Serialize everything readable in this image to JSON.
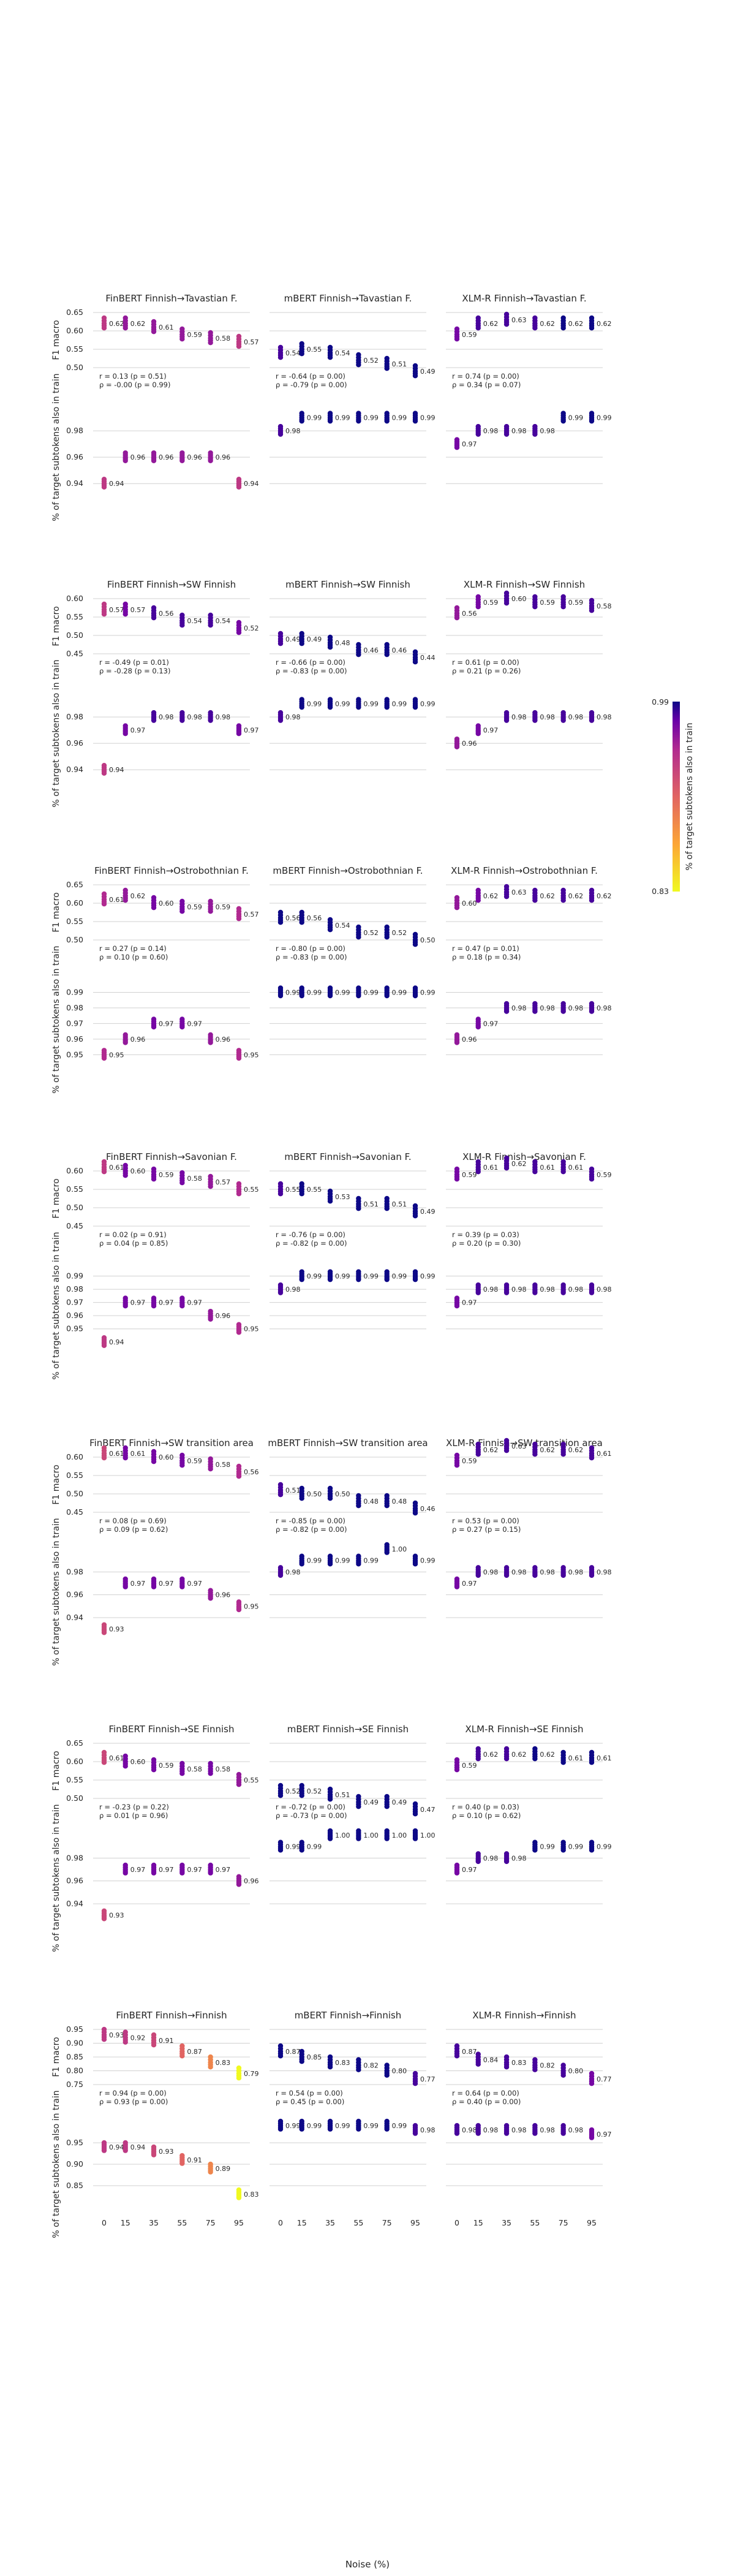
{
  "xlabel": "Noise (%)",
  "x_ticks": [
    "0",
    "15",
    "35",
    "55",
    "75",
    "95"
  ],
  "row_ylabels": [
    "F1 macro",
    "% of target subtokens also in train"
  ],
  "colorbar": {
    "label": "% of target subtokens also in train",
    "max_label": "0.99",
    "min_label": "0.83",
    "min": 0.83,
    "max": 0.99
  },
  "chart_data": {
    "type": "scatter",
    "x": [
      0,
      15,
      35,
      55,
      75,
      95
    ],
    "f1_yranges": [
      [
        0.5,
        0.65
      ],
      [
        0.45,
        0.6
      ],
      [
        0.5,
        0.65
      ],
      [
        0.45,
        0.6
      ],
      [
        0.45,
        0.6
      ],
      [
        0.5,
        0.65
      ],
      [
        0.75,
        0.95
      ]
    ],
    "f1_ticks": [
      [
        "0.65",
        "0.60",
        "0.55",
        "0.50"
      ],
      [
        "0.60",
        "0.55",
        "0.50",
        "0.45"
      ],
      [
        "0.65",
        "0.60",
        "0.55",
        "0.50"
      ],
      [
        "0.60",
        "0.55",
        "0.50",
        "0.45"
      ],
      [
        "0.60",
        "0.55",
        "0.50",
        "0.45"
      ],
      [
        "0.65",
        "0.60",
        "0.55",
        "0.50"
      ],
      [
        "0.95",
        "0.90",
        "0.85",
        "0.80",
        "0.75"
      ]
    ],
    "ov_yranges": [
      [
        0.935,
        1.0
      ],
      [
        0.935,
        1.0
      ],
      [
        0.945,
        1.0
      ],
      [
        0.935,
        1.0
      ],
      [
        0.925,
        1.0
      ],
      [
        0.925,
        1.0
      ],
      [
        0.8,
        1.0
      ]
    ],
    "ov_ticks": [
      [
        "0.98",
        "0.96",
        "0.94"
      ],
      [
        "0.98",
        "0.96",
        "0.94"
      ],
      [
        "0.99",
        "0.98",
        "0.97",
        "0.96",
        "0.95"
      ],
      [
        "0.99",
        "0.98",
        "0.97",
        "0.96",
        "0.95"
      ],
      [
        "0.98",
        "0.96",
        "0.94"
      ],
      [
        "0.98",
        "0.96",
        "0.94"
      ],
      [
        "0.95",
        "0.90",
        "0.85"
      ]
    ],
    "panels": [
      [
        {
          "title": "FinBERT Finnish→Tavastian F.",
          "f1": [
            0.62,
            0.62,
            0.61,
            0.59,
            0.58,
            0.57
          ],
          "f1_labels": [
            "0.62",
            "0.62",
            "0.61",
            "0.59",
            "0.58",
            "0.57"
          ],
          "ov": [
            0.94,
            0.96,
            0.96,
            0.96,
            0.96,
            0.94
          ],
          "ov_labels": [
            "0.94",
            "0.96",
            "0.96",
            "0.96",
            "0.96",
            "0.94"
          ],
          "corr": [
            "r = 0.13 (p = 0.51)",
            "ρ = -0.00 (p = 0.99)"
          ]
        },
        {
          "title": "mBERT Finnish→Tavastian F.",
          "f1": [
            0.54,
            0.55,
            0.54,
            0.52,
            0.51,
            0.49
          ],
          "f1_labels": [
            "0.54",
            "0.55",
            "0.54",
            "0.52",
            "0.51",
            "0.49"
          ],
          "ov": [
            0.98,
            0.99,
            0.99,
            0.99,
            0.99,
            0.99
          ],
          "ov_labels": [
            "0.98",
            "0.99",
            "0.99",
            "0.99",
            "0.99",
            "0.99"
          ],
          "corr": [
            "r = -0.64 (p = 0.00)",
            "ρ = -0.79 (p = 0.00)"
          ]
        },
        {
          "title": "XLM-R Finnish→Tavastian F.",
          "f1": [
            0.59,
            0.62,
            0.63,
            0.62,
            0.62,
            0.62
          ],
          "f1_labels": [
            "0.59",
            "0.62",
            "0.63",
            "0.62",
            "0.62",
            "0.62"
          ],
          "ov": [
            0.97,
            0.98,
            0.98,
            0.98,
            0.99,
            0.99
          ],
          "ov_labels": [
            "0.97",
            "0.98",
            "0.98",
            "0.98",
            "0.99",
            "0.99"
          ],
          "corr": [
            "r = 0.74 (p = 0.00)",
            "ρ = 0.34 (p = 0.07)"
          ]
        }
      ],
      [
        {
          "title": "FinBERT Finnish→SW Finnish",
          "f1": [
            0.57,
            0.57,
            0.56,
            0.54,
            0.54,
            0.52
          ],
          "f1_labels": [
            "0.57",
            "0.57",
            "0.56",
            "0.54",
            "0.54",
            "0.52"
          ],
          "ov": [
            0.94,
            0.97,
            0.98,
            0.98,
            0.98,
            0.97
          ],
          "ov_labels": [
            "0.94",
            "0.97",
            "0.98",
            "0.98",
            "0.98",
            "0.97"
          ],
          "corr": [
            "r = -0.49 (p = 0.01)",
            "ρ = -0.28 (p = 0.13)"
          ]
        },
        {
          "title": "mBERT Finnish→SW Finnish",
          "f1": [
            0.49,
            0.49,
            0.48,
            0.46,
            0.46,
            0.44
          ],
          "f1_labels": [
            "0.49",
            "0.49",
            "0.48",
            "0.46",
            "0.46",
            "0.44"
          ],
          "ov": [
            0.98,
            0.99,
            0.99,
            0.99,
            0.99,
            0.99
          ],
          "ov_labels": [
            "0.98",
            "0.99",
            "0.99",
            "0.99",
            "0.99",
            "0.99"
          ],
          "corr": [
            "r = -0.66 (p = 0.00)",
            "ρ = -0.83 (p = 0.00)"
          ]
        },
        {
          "title": "XLM-R Finnish→SW Finnish",
          "f1": [
            0.56,
            0.59,
            0.6,
            0.59,
            0.59,
            0.58
          ],
          "f1_labels": [
            "0.56",
            "0.59",
            "0.60",
            "0.59",
            "0.59",
            "0.58"
          ],
          "ov": [
            0.96,
            0.97,
            0.98,
            0.98,
            0.98,
            0.98
          ],
          "ov_labels": [
            "0.96",
            "0.97",
            "0.98",
            "0.98",
            "0.98",
            "0.98"
          ],
          "corr": [
            "r = 0.61 (p = 0.00)",
            "ρ = 0.21 (p = 0.26)"
          ]
        }
      ],
      [
        {
          "title": "FinBERT Finnish→Ostrobothnian F.",
          "f1": [
            0.61,
            0.62,
            0.6,
            0.59,
            0.59,
            0.57
          ],
          "f1_labels": [
            "0.61",
            "0.62",
            "0.60",
            "0.59",
            "0.59",
            "0.57"
          ],
          "ov": [
            0.95,
            0.96,
            0.97,
            0.97,
            0.96,
            0.95
          ],
          "ov_labels": [
            "0.95",
            "0.96",
            "0.97",
            "0.97",
            "0.96",
            "0.95"
          ],
          "corr": [
            "r = 0.27 (p = 0.14)",
            "ρ = 0.10 (p = 0.60)"
          ]
        },
        {
          "title": "mBERT Finnish→Ostrobothnian F.",
          "f1": [
            0.56,
            0.56,
            0.54,
            0.52,
            0.52,
            0.5
          ],
          "f1_labels": [
            "0.56",
            "0.56",
            "0.54",
            "0.52",
            "0.52",
            "0.50"
          ],
          "ov": [
            0.99,
            0.99,
            0.99,
            0.99,
            0.99,
            0.99
          ],
          "ov_labels": [
            "0.99",
            "0.99",
            "0.99",
            "0.99",
            "0.99",
            "0.99"
          ],
          "corr": [
            "r = -0.80 (p = 0.00)",
            "ρ = -0.83 (p = 0.00)"
          ]
        },
        {
          "title": "XLM-R Finnish→Ostrobothnian F.",
          "f1": [
            0.6,
            0.62,
            0.63,
            0.62,
            0.62,
            0.62
          ],
          "f1_labels": [
            "0.60",
            "0.62",
            "0.63",
            "0.62",
            "0.62",
            "0.62"
          ],
          "ov": [
            0.96,
            0.97,
            0.98,
            0.98,
            0.98,
            0.98
          ],
          "ov_labels": [
            "0.96",
            "0.97",
            "0.98",
            "0.98",
            "0.98",
            "0.98"
          ],
          "corr": [
            "r = 0.47 (p = 0.01)",
            "ρ = 0.18 (p = 0.34)"
          ]
        }
      ],
      [
        {
          "title": "FinBERT Finnish→Savonian F.",
          "f1": [
            0.61,
            0.6,
            0.59,
            0.58,
            0.57,
            0.55
          ],
          "f1_labels": [
            "0.61",
            "0.60",
            "0.59",
            "0.58",
            "0.57",
            "0.55"
          ],
          "ov": [
            0.94,
            0.97,
            0.97,
            0.97,
            0.96,
            0.95
          ],
          "ov_labels": [
            "0.94",
            "0.97",
            "0.97",
            "0.97",
            "0.96",
            "0.95"
          ],
          "corr": [
            "r = 0.02 (p = 0.91)",
            "ρ = 0.04 (p = 0.85)"
          ]
        },
        {
          "title": "mBERT Finnish→Savonian F.",
          "f1": [
            0.55,
            0.55,
            0.53,
            0.51,
            0.51,
            0.49
          ],
          "f1_labels": [
            "0.55",
            "0.55",
            "0.53",
            "0.51",
            "0.51",
            "0.49"
          ],
          "ov": [
            0.98,
            0.99,
            0.99,
            0.99,
            0.99,
            0.99
          ],
          "ov_labels": [
            "0.98",
            "0.99",
            "0.99",
            "0.99",
            "0.99",
            "0.99"
          ],
          "corr": [
            "r = -0.76 (p = 0.00)",
            "ρ = -0.82 (p = 0.00)"
          ]
        },
        {
          "title": "XLM-R Finnish→Savonian F.",
          "f1": [
            0.59,
            0.61,
            0.62,
            0.61,
            0.61,
            0.59
          ],
          "f1_labels": [
            "0.59",
            "0.61",
            "0.62",
            "0.61",
            "0.61",
            "0.59"
          ],
          "ov": [
            0.97,
            0.98,
            0.98,
            0.98,
            0.98,
            0.98
          ],
          "ov_labels": [
            "0.97",
            "0.98",
            "0.98",
            "0.98",
            "0.98",
            "0.98"
          ],
          "corr": [
            "r = 0.39 (p = 0.03)",
            "ρ = 0.20 (p = 0.30)"
          ]
        }
      ],
      [
        {
          "title": "FinBERT Finnish→SW transition area",
          "f1": [
            0.61,
            0.61,
            0.6,
            0.59,
            0.58,
            0.56
          ],
          "f1_labels": [
            "0.61",
            "0.61",
            "0.60",
            "0.59",
            "0.58",
            "0.56"
          ],
          "ov": [
            0.93,
            0.97,
            0.97,
            0.97,
            0.96,
            0.95
          ],
          "ov_labels": [
            "0.93",
            "0.97",
            "0.97",
            "0.97",
            "0.96",
            "0.95"
          ],
          "corr": [
            "r = 0.08 (p = 0.69)",
            "ρ = 0.09 (p = 0.62)"
          ]
        },
        {
          "title": "mBERT Finnish→SW transition area",
          "f1": [
            0.51,
            0.5,
            0.5,
            0.48,
            0.48,
            0.46
          ],
          "f1_labels": [
            "0.51",
            "0.50",
            "0.50",
            "0.48",
            "0.48",
            "0.46"
          ],
          "ov": [
            0.98,
            0.99,
            0.99,
            0.99,
            1.0,
            0.99
          ],
          "ov_labels": [
            "0.98",
            "0.99",
            "0.99",
            "0.99",
            "1.00",
            "0.99"
          ],
          "corr": [
            "r = -0.85 (p = 0.00)",
            "ρ = -0.82 (p = 0.00)"
          ]
        },
        {
          "title": "XLM-R Finnish→SW transition area",
          "f1": [
            0.59,
            0.62,
            0.63,
            0.62,
            0.62,
            0.61
          ],
          "f1_labels": [
            "0.59",
            "0.62",
            "0.63",
            "0.62",
            "0.62",
            "0.61"
          ],
          "ov": [
            0.97,
            0.98,
            0.98,
            0.98,
            0.98,
            0.98
          ],
          "ov_labels": [
            "0.97",
            "0.98",
            "0.98",
            "0.98",
            "0.98",
            "0.98"
          ],
          "corr": [
            "r = 0.53 (p = 0.00)",
            "ρ = 0.27 (p = 0.15)"
          ]
        }
      ],
      [
        {
          "title": "FinBERT Finnish→SE Finnish",
          "f1": [
            0.61,
            0.6,
            0.59,
            0.58,
            0.58,
            0.55
          ],
          "f1_labels": [
            "0.61",
            "0.60",
            "0.59",
            "0.58",
            "0.58",
            "0.55"
          ],
          "ov": [
            0.93,
            0.97,
            0.97,
            0.97,
            0.97,
            0.96
          ],
          "ov_labels": [
            "0.93",
            "0.97",
            "0.97",
            "0.97",
            "0.97",
            "0.96"
          ],
          "corr": [
            "r = -0.23 (p = 0.22)",
            "ρ = 0.01 (p = 0.96)"
          ]
        },
        {
          "title": "mBERT Finnish→SE Finnish",
          "f1": [
            0.52,
            0.52,
            0.51,
            0.49,
            0.49,
            0.47
          ],
          "f1_labels": [
            "0.52",
            "0.52",
            "0.51",
            "0.49",
            "0.49",
            "0.47"
          ],
          "ov": [
            0.99,
            0.99,
            1.0,
            1.0,
            1.0,
            1.0
          ],
          "ov_labels": [
            "0.99",
            "0.99",
            "1.00",
            "1.00",
            "1.00",
            "1.00"
          ],
          "corr": [
            "r = -0.72 (p = 0.00)",
            "ρ = -0.73 (p = 0.00)"
          ]
        },
        {
          "title": "XLM-R Finnish→SE Finnish",
          "f1": [
            0.59,
            0.62,
            0.62,
            0.62,
            0.61,
            0.61
          ],
          "f1_labels": [
            "0.59",
            "0.62",
            "0.62",
            "0.62",
            "0.61",
            "0.61"
          ],
          "ov": [
            0.97,
            0.98,
            0.98,
            0.99,
            0.99,
            0.99
          ],
          "ov_labels": [
            "0.97",
            "0.98",
            "0.98",
            "0.99",
            "0.99",
            "0.99"
          ],
          "corr": [
            "r = 0.40 (p = 0.03)",
            "ρ = 0.10 (p = 0.62)"
          ]
        }
      ],
      [
        {
          "title": "FinBERT Finnish→Finnish",
          "f1": [
            0.93,
            0.92,
            0.91,
            0.87,
            0.83,
            0.79
          ],
          "f1_labels": [
            "0.93",
            "0.92",
            "0.91",
            "0.87",
            "0.83",
            "0.79"
          ],
          "ov": [
            0.94,
            0.94,
            0.93,
            0.91,
            0.89,
            0.83
          ],
          "ov_labels": [
            "0.94",
            "0.94",
            "0.93",
            "0.91",
            "0.89",
            "0.83"
          ],
          "corr": [
            "r = 0.94 (p = 0.00)",
            "ρ = 0.93 (p = 0.00)"
          ]
        },
        {
          "title": "mBERT Finnish→Finnish",
          "f1": [
            0.87,
            0.85,
            0.83,
            0.82,
            0.8,
            0.77
          ],
          "f1_labels": [
            "0.87",
            "0.85",
            "0.83",
            "0.82",
            "0.80",
            "0.77"
          ],
          "ov": [
            0.99,
            0.99,
            0.99,
            0.99,
            0.99,
            0.98
          ],
          "ov_labels": [
            "0.99",
            "0.99",
            "0.99",
            "0.99",
            "0.99",
            "0.98"
          ],
          "corr": [
            "r = 0.54 (p = 0.00)",
            "ρ = 0.45 (p = 0.00)"
          ]
        },
        {
          "title": "XLM-R Finnish→Finnish",
          "f1": [
            0.87,
            0.84,
            0.83,
            0.82,
            0.8,
            0.77
          ],
          "f1_labels": [
            "0.87",
            "0.84",
            "0.83",
            "0.82",
            "0.80",
            "0.77"
          ],
          "ov": [
            0.98,
            0.98,
            0.98,
            0.98,
            0.98,
            0.97
          ],
          "ov_labels": [
            "0.98",
            "0.98",
            "0.98",
            "0.98",
            "0.98",
            "0.97"
          ],
          "corr": [
            "r = 0.64 (p = 0.00)",
            "ρ = 0.40 (p = 0.00)"
          ]
        }
      ]
    ]
  }
}
